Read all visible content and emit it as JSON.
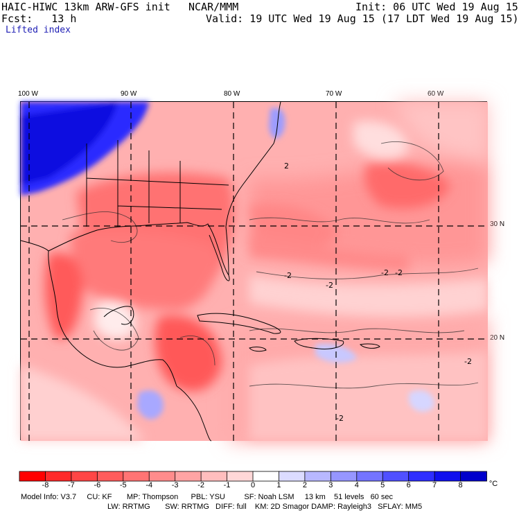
{
  "header": {
    "model": "HAIC-HIWC 13km ARW-GFS init",
    "agency": "NCAR/MMM",
    "init": "Init: 06 UTC Wed 19 Aug 15",
    "fcst": "Fcst:   13 h",
    "valid": "Valid: 19 UTC Wed 19 Aug 15 (17 LDT Wed 19 Aug 15)",
    "field": "Lifted index"
  },
  "axes": {
    "lon_labels": [
      "100 W",
      "90 W",
      "80 W",
      "70 W",
      "60 W"
    ],
    "lat_labels": [
      "30 N",
      "20 N"
    ]
  },
  "colorbar": {
    "unit": "°C",
    "labels": [
      "-8",
      "-7",
      "-6",
      "-5",
      "-4",
      "-3",
      "-2",
      "-1",
      "0",
      "1",
      "2",
      "3",
      "4",
      "5",
      "6",
      "7",
      "8"
    ],
    "colors": [
      "#ff0000",
      "#ff2a2a",
      "#ff4646",
      "#ff5c5c",
      "#ff7474",
      "#ff8c8c",
      "#ffa4a4",
      "#ffbebe",
      "#ffd8d8",
      "#ffffff",
      "#dcdcff",
      "#b8b8ff",
      "#9696ff",
      "#7474ff",
      "#5050ff",
      "#2e2eff",
      "#1010ee",
      "#0000cc"
    ]
  },
  "contour_labels": [
    "-2",
    "-2",
    "-2",
    "-2",
    "2",
    "-2",
    "-2"
  ],
  "model_info": {
    "line1": "Model Info: V3.7     CU: KF       MP: Thompson      PBL: YSU         SF: Noah LSM     13 km    51 levels   60 sec",
    "line2": "LW: RRTMG       SW: RRTMG   DIFF: full    KM: 2D Smagor DAMP: Rayleigh3   SFLAY: MM5"
  }
}
